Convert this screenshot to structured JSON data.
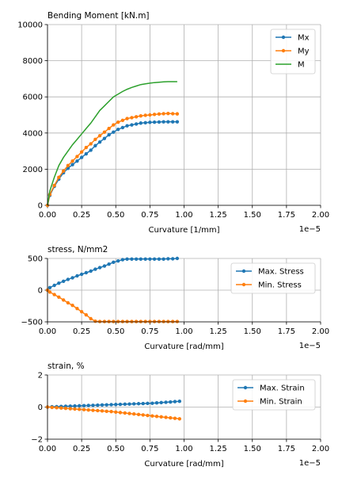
{
  "figure": {
    "colors": {
      "blue": "#1f77b4",
      "orange": "#ff7f0e",
      "green": "#2ca02c",
      "grid": "#b0b0b0"
    }
  },
  "chart_data": [
    {
      "type": "line",
      "title": "Bending Moment [kN.m]",
      "xlabel": "Curvature [1/mm]",
      "ylabel": "",
      "x_offset_label": "1e−5",
      "xlim": [
        0,
        2.0
      ],
      "ylim": [
        0,
        10000
      ],
      "xticks": [
        0,
        0.25,
        0.5,
        0.75,
        1.0,
        1.25,
        1.5,
        1.75,
        2.0
      ],
      "xtick_labels": [
        "0.00",
        "0.25",
        "0.50",
        "0.75",
        "1.00",
        "1.25",
        "1.50",
        "1.75",
        "2.00"
      ],
      "yticks": [
        0,
        2000,
        4000,
        6000,
        8000,
        10000
      ],
      "ytick_labels": [
        "0",
        "2000",
        "4000",
        "6000",
        "8000",
        "10000"
      ],
      "grid": true,
      "legend": "upper right",
      "series": [
        {
          "name": "Mx",
          "color": "#1f77b4",
          "marker": true,
          "x": [
            0,
            0.017,
            0.05,
            0.083,
            0.117,
            0.15,
            0.183,
            0.217,
            0.25,
            0.283,
            0.317,
            0.35,
            0.383,
            0.417,
            0.45,
            0.483,
            0.517,
            0.55,
            0.583,
            0.617,
            0.65,
            0.683,
            0.717,
            0.75,
            0.783,
            0.817,
            0.85,
            0.883,
            0.917,
            0.95
          ],
          "y": [
            0,
            550,
            1050,
            1450,
            1800,
            2050,
            2250,
            2450,
            2650,
            2850,
            3050,
            3300,
            3500,
            3700,
            3900,
            4050,
            4200,
            4300,
            4400,
            4450,
            4500,
            4550,
            4570,
            4590,
            4600,
            4610,
            4620,
            4620,
            4620,
            4620
          ]
        },
        {
          "name": "My",
          "color": "#ff7f0e",
          "marker": true,
          "x": [
            0,
            0.017,
            0.05,
            0.083,
            0.117,
            0.15,
            0.183,
            0.217,
            0.25,
            0.283,
            0.317,
            0.35,
            0.383,
            0.417,
            0.45,
            0.483,
            0.517,
            0.55,
            0.583,
            0.617,
            0.65,
            0.683,
            0.717,
            0.75,
            0.783,
            0.817,
            0.85,
            0.883,
            0.917,
            0.95
          ],
          "y": [
            0,
            600,
            1100,
            1550,
            1900,
            2200,
            2450,
            2700,
            2950,
            3200,
            3400,
            3650,
            3850,
            4050,
            4250,
            4450,
            4600,
            4700,
            4800,
            4850,
            4900,
            4950,
            4980,
            5000,
            5030,
            5050,
            5070,
            5080,
            5070,
            5060
          ]
        },
        {
          "name": "M",
          "color": "#2ca02c",
          "marker": false,
          "x": [
            0,
            0.017,
            0.05,
            0.083,
            0.117,
            0.15,
            0.183,
            0.217,
            0.25,
            0.283,
            0.317,
            0.35,
            0.383,
            0.417,
            0.45,
            0.483,
            0.517,
            0.55,
            0.583,
            0.617,
            0.65,
            0.683,
            0.717,
            0.75,
            0.783,
            0.817,
            0.85,
            0.883,
            0.917,
            0.95
          ],
          "y": [
            0,
            800,
            1550,
            2200,
            2650,
            3000,
            3350,
            3650,
            3950,
            4250,
            4550,
            4900,
            5250,
            5500,
            5750,
            6000,
            6150,
            6300,
            6420,
            6520,
            6600,
            6680,
            6720,
            6760,
            6790,
            6810,
            6830,
            6840,
            6840,
            6840
          ]
        }
      ]
    },
    {
      "type": "line",
      "title": "stress, N/mm2",
      "xlabel": "Curvature [rad/mm]",
      "ylabel": "",
      "x_offset_label": "1e−5",
      "xlim": [
        0,
        2.0
      ],
      "ylim": [
        -500,
        500
      ],
      "xticks": [
        0,
        0.25,
        0.5,
        0.75,
        1.0,
        1.25,
        1.5,
        1.75,
        2.0
      ],
      "xtick_labels": [
        "0.00",
        "0.25",
        "0.50",
        "0.75",
        "1.00",
        "1.25",
        "1.50",
        "1.75",
        "2.00"
      ],
      "yticks": [
        -500,
        0,
        500
      ],
      "ytick_labels": [
        "−500",
        "0",
        "500"
      ],
      "grid": true,
      "legend": "upper right",
      "series": [
        {
          "name": "Max. Stress",
          "color": "#1f77b4",
          "marker": true,
          "x": [
            0,
            0.017,
            0.05,
            0.083,
            0.117,
            0.15,
            0.183,
            0.217,
            0.25,
            0.283,
            0.317,
            0.35,
            0.383,
            0.417,
            0.45,
            0.483,
            0.517,
            0.55,
            0.583,
            0.617,
            0.65,
            0.683,
            0.717,
            0.75,
            0.783,
            0.817,
            0.85,
            0.883,
            0.917,
            0.95
          ],
          "y": [
            0,
            40,
            75,
            110,
            140,
            170,
            195,
            225,
            250,
            275,
            300,
            330,
            355,
            380,
            410,
            440,
            460,
            480,
            490,
            490,
            490,
            490,
            490,
            490,
            490,
            490,
            490,
            495,
            495,
            500
          ]
        },
        {
          "name": "Min. Stress",
          "color": "#ff7f0e",
          "marker": true,
          "x": [
            0,
            0.017,
            0.05,
            0.083,
            0.117,
            0.15,
            0.183,
            0.217,
            0.25,
            0.283,
            0.317,
            0.35,
            0.383,
            0.417,
            0.45,
            0.483,
            0.517,
            0.55,
            0.583,
            0.617,
            0.65,
            0.683,
            0.717,
            0.75,
            0.783,
            0.817,
            0.85,
            0.883,
            0.917,
            0.95
          ],
          "y": [
            0,
            -30,
            -70,
            -110,
            -155,
            -200,
            -240,
            -290,
            -340,
            -390,
            -450,
            -490,
            -495,
            -495,
            -495,
            -495,
            -495,
            -495,
            -495,
            -495,
            -495,
            -495,
            -495,
            -495,
            -495,
            -495,
            -495,
            -495,
            -495,
            -495
          ]
        }
      ]
    },
    {
      "type": "line",
      "title": "strain, %",
      "xlabel": "Curvature [rad/mm]",
      "ylabel": "",
      "x_offset_label": "1e−5",
      "xlim": [
        0,
        2.0
      ],
      "ylim": [
        -2,
        2
      ],
      "xticks": [
        0,
        0.25,
        0.5,
        0.75,
        1.0,
        1.25,
        1.5,
        1.75,
        2.0
      ],
      "xtick_labels": [
        "0.00",
        "0.25",
        "0.50",
        "0.75",
        "1.00",
        "1.25",
        "1.50",
        "1.75",
        "2.00"
      ],
      "yticks": [
        -2,
        0,
        2
      ],
      "ytick_labels": [
        "−2",
        "0",
        "2"
      ],
      "grid": true,
      "legend": "upper right",
      "series": [
        {
          "name": "Max. Strain",
          "color": "#1f77b4",
          "marker": true,
          "x": [
            0,
            0.033,
            0.067,
            0.1,
            0.133,
            0.167,
            0.2,
            0.233,
            0.267,
            0.3,
            0.333,
            0.367,
            0.4,
            0.433,
            0.467,
            0.5,
            0.533,
            0.567,
            0.6,
            0.633,
            0.667,
            0.7,
            0.733,
            0.767,
            0.8,
            0.833,
            0.867,
            0.9,
            0.933,
            0.967
          ],
          "y": [
            0,
            0.02,
            0.03,
            0.04,
            0.05,
            0.06,
            0.07,
            0.08,
            0.09,
            0.1,
            0.11,
            0.12,
            0.13,
            0.14,
            0.15,
            0.16,
            0.17,
            0.18,
            0.19,
            0.2,
            0.21,
            0.22,
            0.23,
            0.24,
            0.26,
            0.28,
            0.3,
            0.32,
            0.34,
            0.36
          ]
        },
        {
          "name": "Min. Strain",
          "color": "#ff7f0e",
          "marker": true,
          "x": [
            0,
            0.033,
            0.067,
            0.1,
            0.133,
            0.167,
            0.2,
            0.233,
            0.267,
            0.3,
            0.333,
            0.367,
            0.4,
            0.433,
            0.467,
            0.5,
            0.533,
            0.567,
            0.6,
            0.633,
            0.667,
            0.7,
            0.733,
            0.767,
            0.8,
            0.833,
            0.867,
            0.9,
            0.933,
            0.967
          ],
          "y": [
            0,
            -0.02,
            -0.04,
            -0.06,
            -0.08,
            -0.1,
            -0.12,
            -0.14,
            -0.16,
            -0.18,
            -0.2,
            -0.22,
            -0.24,
            -0.26,
            -0.28,
            -0.31,
            -0.34,
            -0.37,
            -0.4,
            -0.43,
            -0.46,
            -0.49,
            -0.52,
            -0.55,
            -0.58,
            -0.61,
            -0.64,
            -0.67,
            -0.7,
            -0.73
          ]
        }
      ]
    }
  ]
}
